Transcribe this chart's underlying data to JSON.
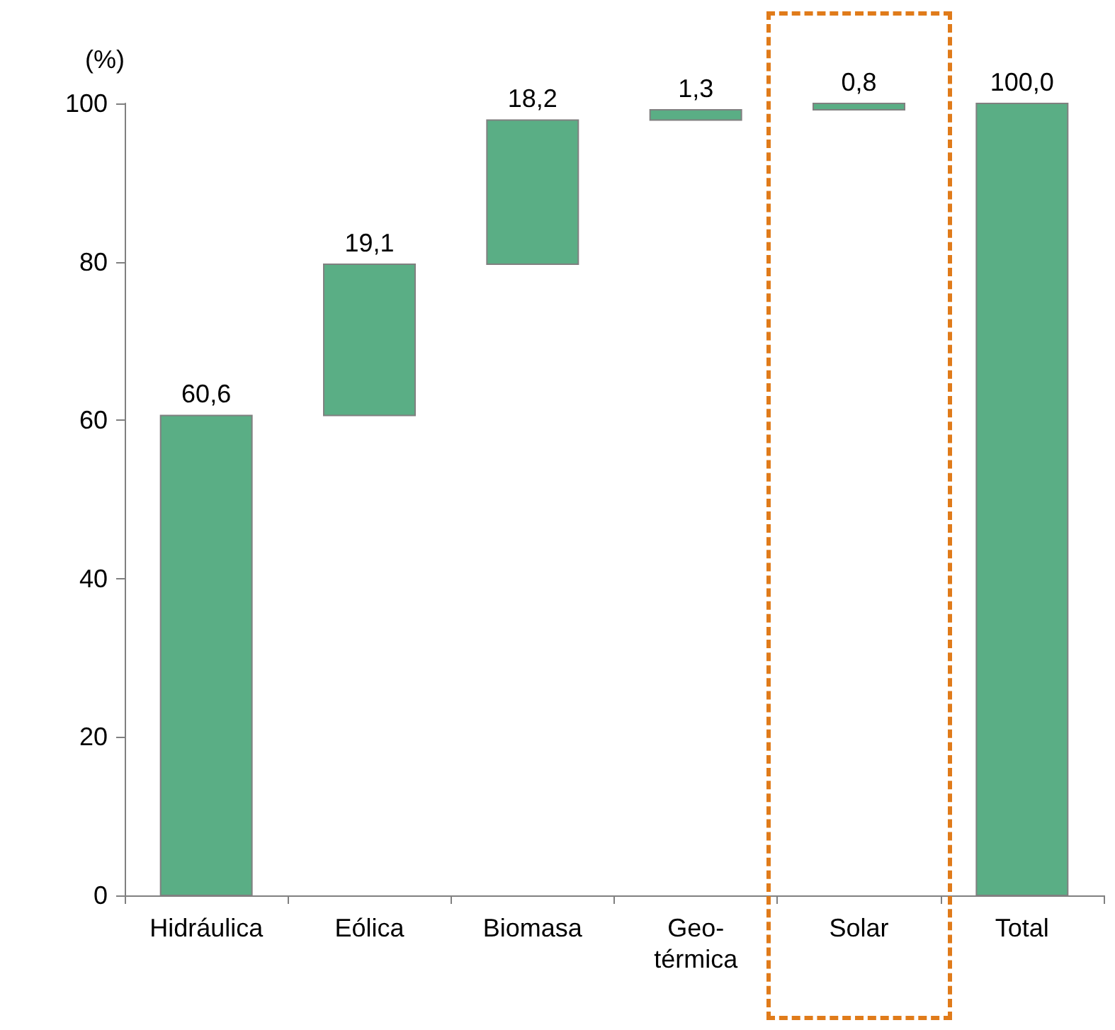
{
  "chart_data": {
    "type": "bar",
    "ylabel": "(%)",
    "categories": [
      "Hidráulica",
      "Eólica",
      "Biomasa",
      "Geo-\ntérmica",
      "Solar",
      "Total"
    ],
    "values": [
      60.6,
      19.1,
      18.2,
      1.3,
      0.8,
      100.0
    ],
    "base": [
      0,
      60.6,
      79.7,
      97.9,
      99.2,
      0
    ],
    "value_labels": [
      "60,6",
      "19,1",
      "18,2",
      "1,3",
      "0,8",
      "100,0"
    ],
    "color": "#5aae85",
    "ylim": [
      0,
      100
    ],
    "yticks": [
      0,
      20,
      40,
      60,
      80,
      100
    ],
    "grid": false
  }
}
